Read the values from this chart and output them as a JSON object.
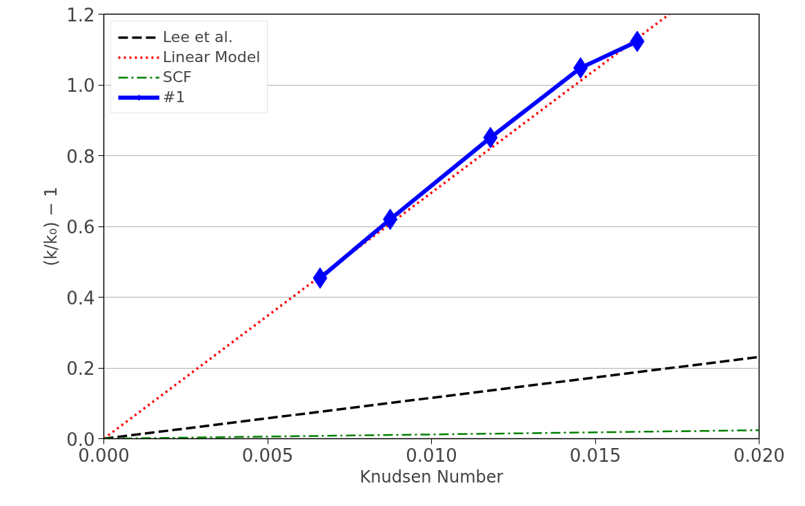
{
  "chart_data": {
    "type": "line",
    "xlabel": "Knudsen Number",
    "ylabel": "(k/k₀) − 1",
    "xlim": [
      0,
      0.02
    ],
    "ylim": [
      0,
      1.2
    ],
    "xticks": [
      {
        "value": 0,
        "label": "0.000"
      },
      {
        "value": 0.005,
        "label": "0.005"
      },
      {
        "value": 0.01,
        "label": "0.010"
      },
      {
        "value": 0.015,
        "label": "0.015"
      },
      {
        "value": 0.02,
        "label": "0.020"
      }
    ],
    "yticks": [
      {
        "value": 0,
        "label": "0.0"
      },
      {
        "value": 0.2,
        "label": "0.2"
      },
      {
        "value": 0.4,
        "label": "0.4"
      },
      {
        "value": 0.6,
        "label": "0.6"
      },
      {
        "value": 0.8,
        "label": "0.8"
      },
      {
        "value": 1.0,
        "label": "1.0"
      },
      {
        "value": 1.2,
        "label": "1.2"
      }
    ],
    "grid": "y",
    "legend": "top left",
    "series": [
      {
        "name": "Lee et al.",
        "color": "#000000",
        "line_style": "dashed",
        "marker": "none",
        "x": [
          0,
          0.02
        ],
        "values": [
          0,
          0.231
        ]
      },
      {
        "name": "Linear Model",
        "color": "#ff0000",
        "line_style": "dotted",
        "marker": "none",
        "x": [
          0,
          0.01726
        ],
        "values": [
          0,
          1.2
        ]
      },
      {
        "name": "SCF",
        "color": "#008000",
        "line_style": "dashdot",
        "marker": "none",
        "x": [
          0,
          0.02
        ],
        "values": [
          0,
          0.024
        ]
      },
      {
        "name": "#1",
        "color": "#0000ff",
        "line_style": "solid",
        "marker": "diamond",
        "x": [
          0.0066,
          0.00874,
          0.0118,
          0.01455,
          0.01628
        ],
        "values": [
          0.454,
          0.62,
          0.851,
          1.048,
          1.123
        ]
      }
    ]
  }
}
